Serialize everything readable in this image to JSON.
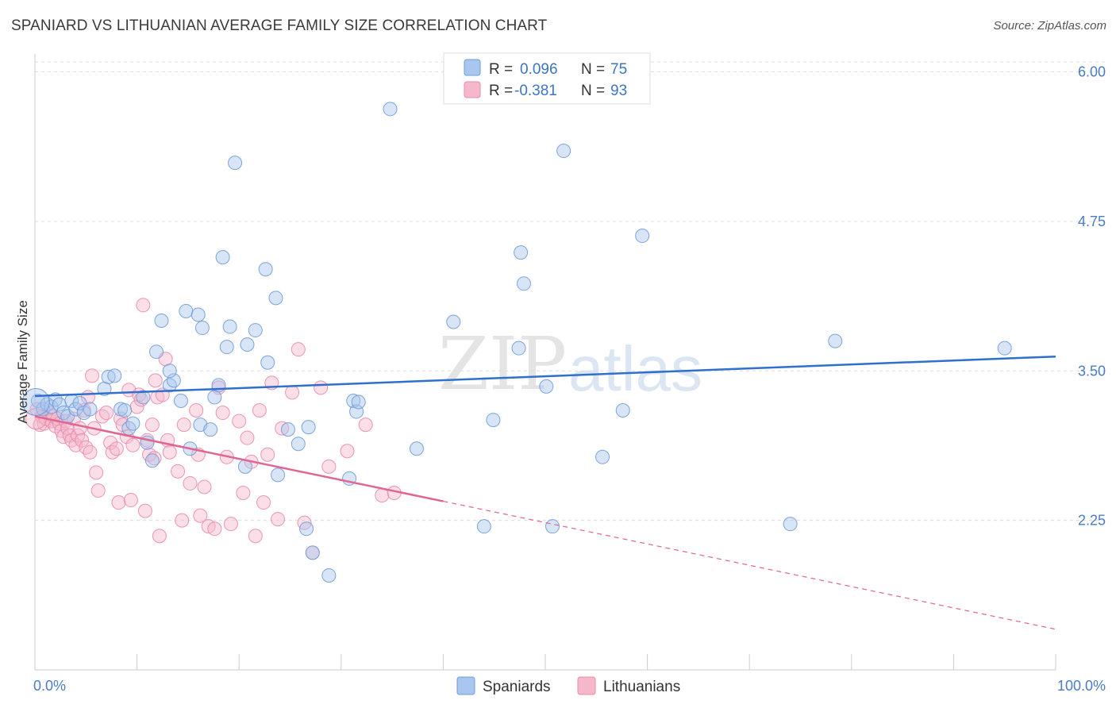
{
  "header": {
    "title": "SPANIARD VS LITHUANIAN AVERAGE FAMILY SIZE CORRELATION CHART",
    "source": "Source: ZipAtlas.com"
  },
  "watermark": {
    "zip": "ZIP",
    "atlas": "atlas"
  },
  "colors": {
    "blue_fill": "#a9c6ee",
    "blue_stroke": "#6f9bd8",
    "blue_line": "#2f6fcd",
    "pink_fill": "#f5b8cb",
    "pink_stroke": "#ec8aa9",
    "pink_line": "#e06590",
    "tick_text": "#4a7cc4",
    "grid": "#dddddd"
  },
  "legend": {
    "items": [
      {
        "r_label": "R =",
        "r_value": "0.096",
        "n_label": "N =",
        "n_value": "75"
      },
      {
        "r_label": "R =",
        "r_value": "-0.381",
        "n_label": "N =",
        "n_value": "93"
      }
    ]
  },
  "bottom_legend": {
    "series1": "Spaniards",
    "series2": "Lithuanians"
  },
  "chart_data": {
    "type": "scatter",
    "title": "SPANIARD VS LITHUANIAN AVERAGE FAMILY SIZE CORRELATION CHART",
    "xlabel": "",
    "ylabel": "Average Family Size",
    "xlim": [
      0,
      100
    ],
    "ylim": [
      1.0,
      6.15
    ],
    "x_tick_labels": [
      "0.0%",
      "100.0%"
    ],
    "y_ticks": [
      2.25,
      3.5,
      4.75,
      6.0
    ],
    "y_tick_labels": [
      "2.25",
      "3.50",
      "4.75",
      "6.00"
    ],
    "grid": true,
    "legend_position": "top-center",
    "series": [
      {
        "name": "Spaniards",
        "r": 0.096,
        "n": 75,
        "trend": {
          "x": [
            0,
            100
          ],
          "y": [
            3.29,
            3.62
          ]
        },
        "points": [
          [
            0.3,
            3.25
          ],
          [
            0.8,
            3.18
          ],
          [
            1.2,
            3.22
          ],
          [
            1.6,
            3.2
          ],
          [
            2.0,
            3.26
          ],
          [
            2.4,
            3.22
          ],
          [
            2.8,
            3.15
          ],
          [
            3.2,
            3.12
          ],
          [
            3.6,
            3.25
          ],
          [
            4.0,
            3.18
          ],
          [
            4.4,
            3.23
          ],
          [
            4.8,
            3.15
          ],
          [
            5.4,
            3.18
          ],
          [
            6.8,
            3.35
          ],
          [
            7.2,
            3.45
          ],
          [
            7.8,
            3.46
          ],
          [
            8.4,
            3.18
          ],
          [
            8.8,
            3.17
          ],
          [
            9.2,
            3.02
          ],
          [
            9.6,
            3.06
          ],
          [
            10.6,
            3.28
          ],
          [
            11.0,
            2.9
          ],
          [
            11.5,
            2.75
          ],
          [
            12.4,
            3.92
          ],
          [
            11.9,
            3.66
          ],
          [
            13.2,
            3.38
          ],
          [
            13.6,
            3.42
          ],
          [
            13.2,
            3.5
          ],
          [
            14.3,
            3.25
          ],
          [
            14.8,
            4.0
          ],
          [
            15.2,
            2.85
          ],
          [
            16.0,
            3.97
          ],
          [
            16.4,
            3.86
          ],
          [
            16.2,
            3.05
          ],
          [
            17.2,
            3.01
          ],
          [
            17.6,
            3.28
          ],
          [
            18.0,
            3.38
          ],
          [
            18.4,
            4.45
          ],
          [
            18.8,
            3.7
          ],
          [
            19.1,
            3.87
          ],
          [
            19.6,
            5.24
          ],
          [
            20.6,
            2.7
          ],
          [
            20.8,
            3.72
          ],
          [
            21.6,
            3.84
          ],
          [
            22.6,
            4.35
          ],
          [
            22.8,
            3.57
          ],
          [
            23.6,
            4.11
          ],
          [
            23.8,
            2.63
          ],
          [
            24.8,
            3.01
          ],
          [
            25.8,
            2.89
          ],
          [
            26.6,
            2.18
          ],
          [
            26.8,
            3.03
          ],
          [
            27.2,
            1.98
          ],
          [
            28.8,
            1.79
          ],
          [
            30.8,
            2.6
          ],
          [
            31.2,
            3.25
          ],
          [
            31.5,
            3.16
          ],
          [
            31.7,
            3.24
          ],
          [
            34.8,
            5.69
          ],
          [
            37.4,
            2.85
          ],
          [
            41.0,
            3.91
          ],
          [
            44.0,
            2.2
          ],
          [
            44.9,
            3.09
          ],
          [
            47.4,
            3.69
          ],
          [
            47.6,
            4.49
          ],
          [
            47.9,
            4.23
          ],
          [
            50.1,
            3.37
          ],
          [
            50.7,
            2.2
          ],
          [
            51.8,
            5.34
          ],
          [
            55.6,
            2.78
          ],
          [
            57.6,
            3.17
          ],
          [
            59.5,
            4.63
          ],
          [
            74.0,
            2.22
          ],
          [
            78.4,
            3.75
          ],
          [
            95.0,
            3.69
          ]
        ]
      },
      {
        "name": "Lithuanians",
        "r": -0.381,
        "n": 93,
        "trend": {
          "x": [
            0,
            40
          ],
          "y": [
            3.12,
            2.41
          ]
        },
        "trend_dashed": {
          "x": [
            40,
            100
          ],
          "y": [
            2.41,
            1.34
          ]
        },
        "points": [
          [
            0.2,
            3.18
          ],
          [
            0.5,
            3.05
          ],
          [
            0.7,
            3.12
          ],
          [
            0.9,
            3.06
          ],
          [
            1.1,
            3.1
          ],
          [
            1.4,
            3.15
          ],
          [
            1.6,
            3.08
          ],
          [
            1.8,
            3.12
          ],
          [
            2.0,
            3.04
          ],
          [
            2.2,
            3.1
          ],
          [
            2.4,
            3.06
          ],
          [
            2.6,
            3.0
          ],
          [
            2.8,
            2.95
          ],
          [
            3.0,
            3.08
          ],
          [
            3.2,
            3.02
          ],
          [
            3.4,
            2.96
          ],
          [
            3.6,
            2.92
          ],
          [
            3.8,
            3.1
          ],
          [
            4.0,
            2.88
          ],
          [
            4.2,
            2.96
          ],
          [
            4.4,
            3.02
          ],
          [
            4.6,
            2.92
          ],
          [
            4.8,
            3.17
          ],
          [
            5.0,
            2.86
          ],
          [
            5.2,
            3.28
          ],
          [
            5.4,
            2.82
          ],
          [
            5.6,
            3.46
          ],
          [
            5.8,
            3.02
          ],
          [
            6.0,
            2.65
          ],
          [
            6.2,
            2.5
          ],
          [
            6.6,
            3.12
          ],
          [
            7.0,
            3.15
          ],
          [
            7.4,
            2.9
          ],
          [
            7.6,
            2.82
          ],
          [
            8.0,
            2.85
          ],
          [
            8.2,
            2.4
          ],
          [
            8.4,
            3.1
          ],
          [
            8.6,
            3.05
          ],
          [
            9.0,
            2.95
          ],
          [
            9.2,
            3.34
          ],
          [
            9.6,
            2.88
          ],
          [
            10.0,
            3.2
          ],
          [
            10.2,
            3.3
          ],
          [
            10.4,
            3.26
          ],
          [
            10.6,
            4.05
          ],
          [
            10.8,
            2.33
          ],
          [
            11.0,
            2.92
          ],
          [
            11.2,
            2.8
          ],
          [
            11.5,
            3.05
          ],
          [
            11.8,
            3.42
          ],
          [
            12.0,
            3.28
          ],
          [
            12.2,
            2.12
          ],
          [
            12.5,
            3.3
          ],
          [
            12.8,
            3.6
          ],
          [
            13.0,
            2.92
          ],
          [
            13.2,
            2.82
          ],
          [
            14.0,
            2.66
          ],
          [
            14.4,
            2.25
          ],
          [
            14.6,
            3.05
          ],
          [
            15.2,
            2.56
          ],
          [
            15.8,
            3.17
          ],
          [
            16.0,
            2.8
          ],
          [
            16.2,
            2.29
          ],
          [
            16.6,
            2.53
          ],
          [
            17.0,
            2.2
          ],
          [
            17.6,
            2.18
          ],
          [
            18.0,
            3.36
          ],
          [
            18.4,
            3.15
          ],
          [
            18.8,
            2.78
          ],
          [
            19.2,
            2.22
          ],
          [
            20.0,
            3.08
          ],
          [
            20.4,
            2.48
          ],
          [
            20.8,
            2.94
          ],
          [
            21.2,
            2.74
          ],
          [
            21.6,
            2.12
          ],
          [
            22.0,
            3.17
          ],
          [
            22.4,
            2.4
          ],
          [
            22.8,
            2.8
          ],
          [
            23.2,
            3.4
          ],
          [
            23.8,
            2.26
          ],
          [
            24.2,
            3.02
          ],
          [
            25.2,
            3.32
          ],
          [
            25.8,
            3.68
          ],
          [
            26.4,
            2.23
          ],
          [
            27.2,
            1.98
          ],
          [
            28.0,
            3.36
          ],
          [
            28.8,
            2.7
          ],
          [
            30.6,
            2.83
          ],
          [
            32.4,
            3.05
          ],
          [
            34.0,
            2.46
          ],
          [
            35.2,
            2.48
          ],
          [
            9.4,
            2.42
          ],
          [
            11.7,
            2.77
          ]
        ]
      }
    ]
  }
}
